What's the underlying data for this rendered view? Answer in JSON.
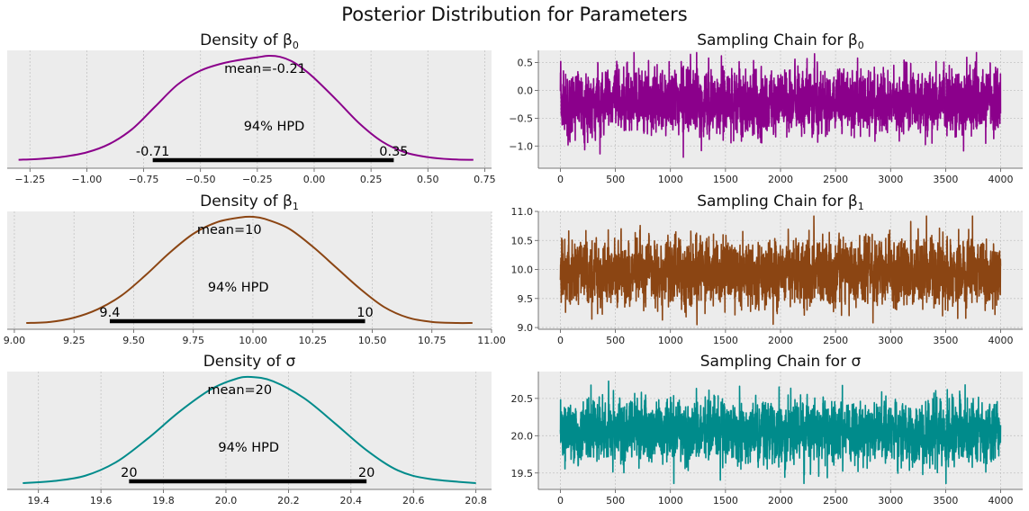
{
  "title": "Posterior Distribution for Parameters",
  "chart_data": [
    {
      "type": "area",
      "title": "Density of β0",
      "param": "β",
      "param_sub": "0",
      "color": "#8b008b",
      "xlim": [
        -1.35,
        0.78
      ],
      "xticks": [
        -1.25,
        -1.0,
        -0.75,
        -0.5,
        -0.25,
        0.0,
        0.25,
        0.5,
        0.75
      ],
      "xtick_labels": [
        "−1.25",
        "−1.00",
        "−0.75",
        "−0.50",
        "−0.25",
        "0.00",
        "0.25",
        "0.50",
        "0.75"
      ],
      "density_x": [
        -1.3,
        -1.2,
        -1.1,
        -1.0,
        -0.9,
        -0.8,
        -0.7,
        -0.6,
        -0.5,
        -0.4,
        -0.3,
        -0.25,
        -0.2,
        -0.15,
        -0.1,
        -0.05,
        0.0,
        0.1,
        0.2,
        0.3,
        0.4,
        0.5,
        0.6,
        0.7
      ],
      "density_y": [
        0.02,
        0.03,
        0.05,
        0.09,
        0.17,
        0.31,
        0.52,
        0.73,
        0.86,
        0.93,
        0.97,
        0.985,
        1.0,
        0.99,
        0.95,
        0.88,
        0.79,
        0.58,
        0.36,
        0.19,
        0.09,
        0.045,
        0.025,
        0.02
      ],
      "mean_label": "mean=-0.21",
      "hpd_label": "94% HPD",
      "hpd": [
        -0.71,
        0.35
      ],
      "hpd_low_label": "-0.71",
      "hpd_high_label": "0.35"
    },
    {
      "type": "line",
      "title": "Sampling Chain for β0",
      "param": "β",
      "param_sub": "0",
      "color": "#8b008b",
      "xlim": [
        -200,
        4200
      ],
      "ylim": [
        -1.4,
        0.72
      ],
      "xticks": [
        0,
        500,
        1000,
        1500,
        2000,
        2500,
        3000,
        3500,
        4000
      ],
      "yticks": [
        -1.0,
        -0.5,
        0.0,
        0.5
      ],
      "ytick_labels": [
        "−1.0",
        "−0.5",
        "0.0",
        "0.5"
      ],
      "n_samples": 4000,
      "mean": -0.21,
      "sd": 0.28,
      "min": -1.28,
      "max": 0.68
    },
    {
      "type": "area",
      "title": "Density of β1",
      "param": "β",
      "param_sub": "1",
      "color": "#8b4513",
      "xlim": [
        8.97,
        11.0
      ],
      "xticks": [
        9.0,
        9.25,
        9.5,
        9.75,
        10.0,
        10.25,
        10.5,
        10.75,
        11.0
      ],
      "xtick_labels": [
        "9.00",
        "9.25",
        "9.50",
        "9.75",
        "10.00",
        "10.25",
        "10.50",
        "10.75",
        "11.00"
      ],
      "density_x": [
        9.05,
        9.15,
        9.25,
        9.35,
        9.45,
        9.55,
        9.65,
        9.75,
        9.85,
        9.95,
        10.0,
        10.05,
        10.15,
        10.25,
        10.35,
        10.45,
        10.55,
        10.65,
        10.75,
        10.85,
        10.92
      ],
      "density_y": [
        0.0,
        0.01,
        0.05,
        0.13,
        0.26,
        0.45,
        0.66,
        0.84,
        0.95,
        0.995,
        1.0,
        0.98,
        0.89,
        0.72,
        0.52,
        0.32,
        0.15,
        0.05,
        0.01,
        0.0,
        0.0
      ],
      "mean_label": "mean=10",
      "hpd_label": "94% HPD",
      "hpd": [
        9.4,
        10.47
      ],
      "hpd_low_label": "9.4",
      "hpd_high_label": "10"
    },
    {
      "type": "line",
      "title": "Sampling Chain for β1",
      "param": "β",
      "param_sub": "1",
      "color": "#8b4513",
      "xlim": [
        -200,
        4200
      ],
      "ylim": [
        8.97,
        11.0
      ],
      "xticks": [
        0,
        500,
        1000,
        1500,
        2000,
        2500,
        3000,
        3500,
        4000
      ],
      "yticks": [
        9.0,
        9.5,
        10.0,
        10.5,
        11.0
      ],
      "ytick_labels": [
        "9.0",
        "9.5",
        "10.0",
        "10.5",
        "11.0"
      ],
      "n_samples": 4000,
      "mean": 9.95,
      "sd": 0.28,
      "min": 9.05,
      "max": 10.92
    },
    {
      "type": "area",
      "title": "Density of σ",
      "param": "σ",
      "param_sub": "",
      "color": "#008b8b",
      "xlim": [
        19.3,
        20.85
      ],
      "xticks": [
        19.4,
        19.6,
        19.8,
        20.0,
        20.2,
        20.4,
        20.6,
        20.8
      ],
      "xtick_labels": [
        "19.4",
        "19.6",
        "19.8",
        "20.0",
        "20.2",
        "20.4",
        "20.6",
        "20.8"
      ],
      "density_x": [
        19.35,
        19.45,
        19.55,
        19.65,
        19.75,
        19.85,
        19.95,
        20.03,
        20.08,
        20.15,
        20.25,
        20.35,
        20.45,
        20.55,
        20.65,
        20.8
      ],
      "density_y": [
        0.0,
        0.02,
        0.07,
        0.2,
        0.42,
        0.67,
        0.88,
        0.98,
        1.0,
        0.96,
        0.8,
        0.56,
        0.31,
        0.12,
        0.04,
        0.0
      ],
      "mean_label": "mean=20",
      "hpd_label": "94% HPD",
      "hpd": [
        19.69,
        20.45
      ],
      "hpd_low_label": "20",
      "hpd_high_label": "20"
    },
    {
      "type": "line",
      "title": "Sampling Chain for σ",
      "param": "σ",
      "param_sub": "",
      "color": "#008b8b",
      "xlim": [
        -200,
        4200
      ],
      "ylim": [
        19.28,
        20.86
      ],
      "xticks": [
        0,
        500,
        1000,
        1500,
        2000,
        2500,
        3000,
        3500,
        4000
      ],
      "yticks": [
        19.5,
        20.0,
        20.5
      ],
      "ytick_labels": [
        "19.5",
        "20.0",
        "20.5"
      ],
      "n_samples": 4000,
      "mean": 20.05,
      "sd": 0.2,
      "min": 19.36,
      "max": 20.78
    }
  ]
}
